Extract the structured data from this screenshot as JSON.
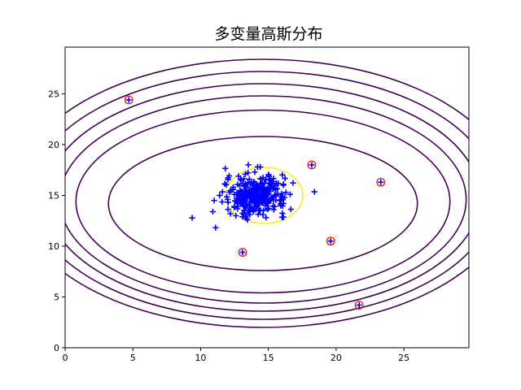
{
  "chart_data": {
    "type": "scatter",
    "title": "多变量高斯分布",
    "xlabel": "",
    "ylabel": "",
    "xlim": [
      0,
      29.8
    ],
    "ylim": [
      0,
      29.6
    ],
    "x_ticks": [
      0,
      5,
      10,
      15,
      20,
      25
    ],
    "y_ticks": [
      0,
      5,
      10,
      15,
      20,
      25
    ],
    "grid": false,
    "legend": "none",
    "colors": {
      "points": "#0000ff",
      "outlier_circles": "#ff0000",
      "contours": "#440154",
      "inner_contour": "#fde725",
      "axes": "#000000"
    },
    "gaussian": {
      "mean": [
        14.1,
        15.0
      ],
      "std": [
        1.3,
        1.3
      ],
      "point_count": 300
    },
    "scatter_points_sample": [
      [
        11.0,
        14.5
      ],
      [
        10.9,
        13.4
      ],
      [
        11.4,
        15.0
      ],
      [
        12.0,
        14.6
      ],
      [
        12.2,
        13.2
      ],
      [
        12.6,
        13.0
      ],
      [
        13.1,
        12.9
      ],
      [
        13.0,
        16.5
      ],
      [
        12.8,
        16.9
      ],
      [
        13.3,
        17.1
      ],
      [
        14.2,
        17.8
      ],
      [
        14.0,
        17.3
      ],
      [
        15.1,
        16.6
      ],
      [
        15.6,
        16.2
      ],
      [
        16.1,
        16.0
      ],
      [
        16.3,
        15.3
      ],
      [
        15.9,
        14.2
      ],
      [
        15.4,
        13.6
      ],
      [
        14.6,
        13.1
      ],
      [
        13.9,
        13.4
      ],
      [
        12.4,
        15.6
      ],
      [
        12.7,
        14.2
      ],
      [
        16.2,
        14.8
      ],
      [
        15.0,
        17.0
      ],
      [
        13.6,
        16.6
      ]
    ],
    "outliers": [
      [
        4.7,
        24.4
      ],
      [
        18.2,
        18.0
      ],
      [
        23.3,
        16.3
      ],
      [
        19.6,
        10.5
      ],
      [
        13.1,
        9.4
      ],
      [
        21.7,
        4.2
      ]
    ],
    "contours": [
      {
        "center": [
          14.7,
          15.0
        ],
        "rx": 2.85,
        "ry": 2.75,
        "color": "#fde725"
      },
      {
        "center": [
          14.6,
          14.2
        ],
        "rx": 11.4,
        "ry": 6.6,
        "color": "#440154"
      },
      {
        "center": [
          14.6,
          14.4
        ],
        "rx": 13.8,
        "ry": 9.0,
        "color": "#440154"
      },
      {
        "center": [
          14.6,
          14.6
        ],
        "rx": 15.0,
        "ry": 10.2,
        "color": "#440154"
      },
      {
        "center": [
          14.6,
          14.8
        ],
        "rx": 16.0,
        "ry": 11.2,
        "color": "#440154"
      },
      {
        "center": [
          14.6,
          15.0
        ],
        "rx": 17.1,
        "ry": 12.2,
        "color": "#440154"
      },
      {
        "center": [
          14.6,
          15.2
        ],
        "rx": 18.2,
        "ry": 13.2,
        "color": "#440154"
      }
    ]
  }
}
